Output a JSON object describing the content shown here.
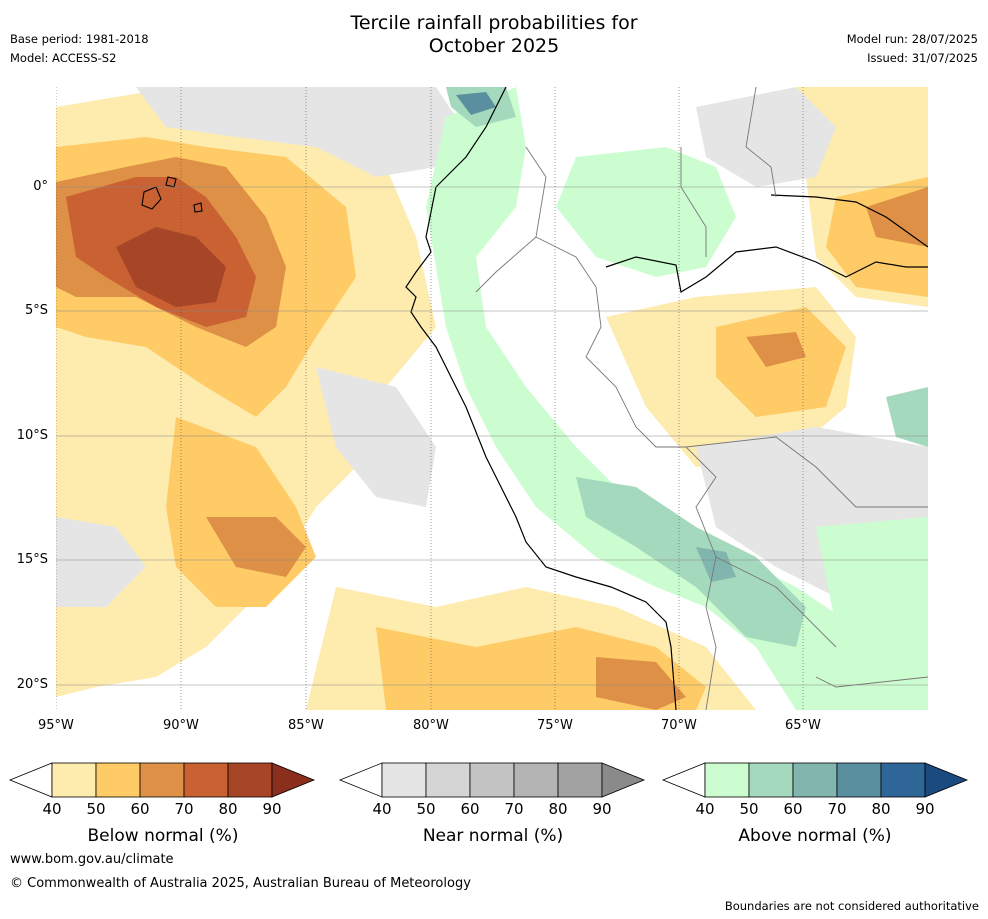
{
  "title_line1": "Tercile rainfall probabilities for",
  "title_line2": "October 2025",
  "base_period": "Base period: 1981-2018",
  "model": "Model: ACCESS-S2",
  "model_run": "Model run: 28/07/2025",
  "issued": "Issued: 31/07/2025",
  "lon_ticks": [
    "95°W",
    "90°W",
    "85°W",
    "80°W",
    "75°W",
    "70°W",
    "65°W"
  ],
  "lat_ticks": [
    "0°",
    "5°S",
    "10°S",
    "15°S",
    "20°S"
  ],
  "colorbars": [
    {
      "label": "Below normal (%)",
      "ticks": [
        "40",
        "50",
        "60",
        "70",
        "80",
        "90"
      ],
      "colors": [
        "#ffffff",
        "#feebae",
        "#fecb66",
        "#de9146",
        "#c96133",
        "#a74626",
        "#8b2f1c"
      ]
    },
    {
      "label": "Near normal (%)",
      "ticks": [
        "40",
        "50",
        "60",
        "70",
        "80",
        "90"
      ],
      "colors": [
        "#ffffff",
        "#e5e5e5",
        "#d5d5d5",
        "#c4c4c4",
        "#b4b4b4",
        "#a2a2a2",
        "#8a8a8a"
      ]
    },
    {
      "label": "Above normal (%)",
      "ticks": [
        "40",
        "50",
        "60",
        "70",
        "80",
        "90"
      ],
      "colors": [
        "#ffffff",
        "#ccfdd0",
        "#a5d9bd",
        "#80b6ad",
        "#5a8fa0",
        "#2f6698",
        "#1a4a7f"
      ]
    }
  ],
  "footer_url": "www.bom.gov.au/climate",
  "footer_copyright": "© Commonwealth of Australia 2025, Australian Bureau of Meteorology",
  "footer_disclaimer": "Boundaries are not considered authoritative"
}
